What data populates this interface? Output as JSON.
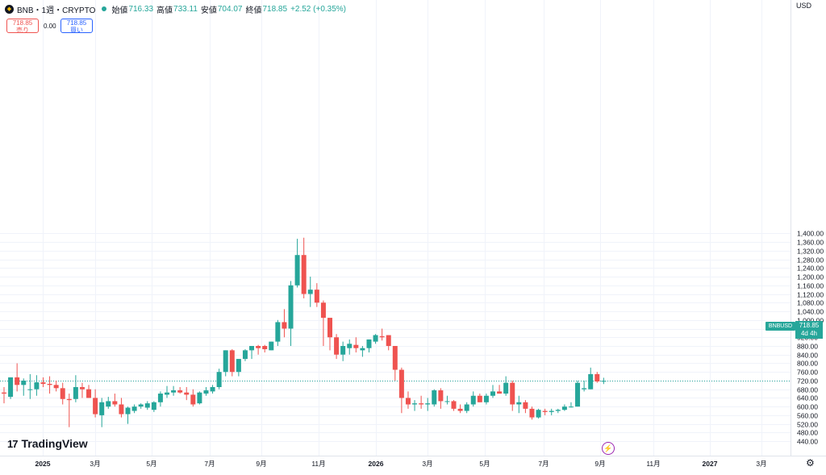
{
  "header": {
    "symbol_line": "BNB・1週・CRYPTO",
    "open_label": "始値",
    "open": "716.33",
    "high_label": "高値",
    "high": "733.11",
    "low_label": "安値",
    "low": "704.07",
    "close_label": "終値",
    "close": "718.85",
    "change": "+2.52 (+0.35%)"
  },
  "trade": {
    "sell_price": "718.85",
    "sell_label": "売り",
    "spread": "0.00",
    "buy_price": "718.85",
    "buy_label": "買い"
  },
  "currency": "USD",
  "last_price_tag": {
    "symbol": "BNBUSD",
    "price": "718.85",
    "countdown": "4d 4h"
  },
  "brand": "TradingView",
  "colors": {
    "up": "#26a69a",
    "down": "#ef5350",
    "buy": "#2962ff",
    "flag": "#9c27b0"
  },
  "icons": {
    "symbol": "bnb-coin-icon",
    "status": "market-status-dot-icon",
    "settings": "gear-icon",
    "event": "lightning-icon",
    "logo": "tradingview-logo-icon"
  },
  "chart_data": {
    "type": "candlestick",
    "interval": "1週",
    "ylim": [
      420,
      1420
    ],
    "y_ticks": [
      "440.00",
      "480.00",
      "520.00",
      "560.00",
      "600.00",
      "640.00",
      "680.00",
      "720.00",
      "760.00",
      "800.00",
      "840.00",
      "880.00",
      "920.00",
      "960.00",
      "1,000.00",
      "1,040.00",
      "1,080.00",
      "1,120.00",
      "1,160.00",
      "1,200.00",
      "1,240.00",
      "1,280.00",
      "1,320.00",
      "1,360.00",
      "1,400.00"
    ],
    "x_ticks": [
      "2025",
      "3月",
      "5月",
      "7月",
      "9月",
      "11月",
      "2026",
      "3月",
      "5月",
      "7月",
      "9月",
      "11月",
      "2027",
      "3月"
    ],
    "last_price": 718.85,
    "candles": [
      {
        "o": 665,
        "h": 690,
        "l": 615,
        "c": 660
      },
      {
        "o": 645,
        "h": 735,
        "l": 635,
        "c": 735
      },
      {
        "o": 735,
        "h": 800,
        "l": 670,
        "c": 700
      },
      {
        "o": 700,
        "h": 730,
        "l": 650,
        "c": 720
      },
      {
        "o": 680,
        "h": 750,
        "l": 635,
        "c": 680
      },
      {
        "o": 680,
        "h": 745,
        "l": 650,
        "c": 712
      },
      {
        "o": 712,
        "h": 735,
        "l": 690,
        "c": 705
      },
      {
        "o": 705,
        "h": 740,
        "l": 660,
        "c": 700
      },
      {
        "o": 700,
        "h": 720,
        "l": 670,
        "c": 685
      },
      {
        "o": 685,
        "h": 710,
        "l": 610,
        "c": 635
      },
      {
        "o": 635,
        "h": 660,
        "l": 505,
        "c": 630
      },
      {
        "o": 635,
        "h": 745,
        "l": 620,
        "c": 690
      },
      {
        "o": 690,
        "h": 710,
        "l": 640,
        "c": 680
      },
      {
        "o": 680,
        "h": 700,
        "l": 640,
        "c": 640
      },
      {
        "o": 640,
        "h": 680,
        "l": 550,
        "c": 565
      },
      {
        "o": 560,
        "h": 640,
        "l": 505,
        "c": 620
      },
      {
        "o": 600,
        "h": 645,
        "l": 590,
        "c": 625
      },
      {
        "o": 625,
        "h": 660,
        "l": 600,
        "c": 610
      },
      {
        "o": 610,
        "h": 640,
        "l": 550,
        "c": 565
      },
      {
        "o": 565,
        "h": 600,
        "l": 520,
        "c": 595
      },
      {
        "o": 580,
        "h": 610,
        "l": 570,
        "c": 600
      },
      {
        "o": 600,
        "h": 615,
        "l": 590,
        "c": 610
      },
      {
        "o": 595,
        "h": 625,
        "l": 585,
        "c": 615
      },
      {
        "o": 585,
        "h": 625,
        "l": 575,
        "c": 620
      },
      {
        "o": 620,
        "h": 670,
        "l": 600,
        "c": 660
      },
      {
        "o": 655,
        "h": 695,
        "l": 640,
        "c": 665
      },
      {
        "o": 665,
        "h": 695,
        "l": 650,
        "c": 675
      },
      {
        "o": 675,
        "h": 690,
        "l": 660,
        "c": 665
      },
      {
        "o": 665,
        "h": 690,
        "l": 630,
        "c": 655
      },
      {
        "o": 655,
        "h": 680,
        "l": 600,
        "c": 610
      },
      {
        "o": 615,
        "h": 670,
        "l": 610,
        "c": 665
      },
      {
        "o": 660,
        "h": 690,
        "l": 650,
        "c": 675
      },
      {
        "o": 670,
        "h": 700,
        "l": 660,
        "c": 690
      },
      {
        "o": 690,
        "h": 775,
        "l": 680,
        "c": 760
      },
      {
        "o": 760,
        "h": 860,
        "l": 740,
        "c": 860
      },
      {
        "o": 860,
        "h": 865,
        "l": 740,
        "c": 760
      },
      {
        "o": 760,
        "h": 820,
        "l": 740,
        "c": 820
      },
      {
        "o": 820,
        "h": 865,
        "l": 810,
        "c": 860
      },
      {
        "o": 860,
        "h": 880,
        "l": 820,
        "c": 880
      },
      {
        "o": 880,
        "h": 885,
        "l": 840,
        "c": 870
      },
      {
        "o": 880,
        "h": 885,
        "l": 850,
        "c": 865
      },
      {
        "o": 860,
        "h": 900,
        "l": 860,
        "c": 900
      },
      {
        "o": 900,
        "h": 1000,
        "l": 880,
        "c": 990
      },
      {
        "o": 990,
        "h": 1050,
        "l": 920,
        "c": 960
      },
      {
        "o": 960,
        "h": 1180,
        "l": 880,
        "c": 1160
      },
      {
        "o": 1160,
        "h": 1375,
        "l": 1150,
        "c": 1300
      },
      {
        "o": 1300,
        "h": 1380,
        "l": 1100,
        "c": 1120
      },
      {
        "o": 1120,
        "h": 1200,
        "l": 1060,
        "c": 1140
      },
      {
        "o": 1140,
        "h": 1170,
        "l": 1060,
        "c": 1080
      },
      {
        "o": 1080,
        "h": 1090,
        "l": 880,
        "c": 1010
      },
      {
        "o": 1010,
        "h": 1010,
        "l": 860,
        "c": 920
      },
      {
        "o": 920,
        "h": 935,
        "l": 820,
        "c": 840
      },
      {
        "o": 840,
        "h": 900,
        "l": 810,
        "c": 880
      },
      {
        "o": 870,
        "h": 910,
        "l": 840,
        "c": 890
      },
      {
        "o": 885,
        "h": 920,
        "l": 850,
        "c": 870
      },
      {
        "o": 860,
        "h": 880,
        "l": 830,
        "c": 870
      },
      {
        "o": 870,
        "h": 910,
        "l": 850,
        "c": 910
      },
      {
        "o": 900,
        "h": 935,
        "l": 890,
        "c": 930
      },
      {
        "o": 925,
        "h": 960,
        "l": 905,
        "c": 920
      },
      {
        "o": 930,
        "h": 930,
        "l": 860,
        "c": 880
      },
      {
        "o": 880,
        "h": 880,
        "l": 720,
        "c": 770
      },
      {
        "o": 770,
        "h": 780,
        "l": 570,
        "c": 640
      },
      {
        "o": 640,
        "h": 670,
        "l": 590,
        "c": 610
      },
      {
        "o": 610,
        "h": 630,
        "l": 580,
        "c": 615
      },
      {
        "o": 615,
        "h": 650,
        "l": 590,
        "c": 610
      },
      {
        "o": 610,
        "h": 640,
        "l": 580,
        "c": 615
      },
      {
        "o": 610,
        "h": 680,
        "l": 600,
        "c": 675
      },
      {
        "o": 675,
        "h": 685,
        "l": 590,
        "c": 625
      },
      {
        "o": 625,
        "h": 650,
        "l": 610,
        "c": 625
      },
      {
        "o": 625,
        "h": 630,
        "l": 580,
        "c": 590
      },
      {
        "o": 590,
        "h": 610,
        "l": 570,
        "c": 580
      },
      {
        "o": 580,
        "h": 620,
        "l": 570,
        "c": 610
      },
      {
        "o": 610,
        "h": 670,
        "l": 600,
        "c": 650
      },
      {
        "o": 650,
        "h": 660,
        "l": 620,
        "c": 620
      },
      {
        "o": 620,
        "h": 660,
        "l": 610,
        "c": 650
      },
      {
        "o": 650,
        "h": 700,
        "l": 640,
        "c": 670
      },
      {
        "o": 670,
        "h": 700,
        "l": 660,
        "c": 660
      },
      {
        "o": 660,
        "h": 740,
        "l": 650,
        "c": 710
      },
      {
        "o": 710,
        "h": 720,
        "l": 580,
        "c": 610
      },
      {
        "o": 610,
        "h": 650,
        "l": 570,
        "c": 620
      },
      {
        "o": 620,
        "h": 630,
        "l": 570,
        "c": 590
      },
      {
        "o": 590,
        "h": 600,
        "l": 540,
        "c": 550
      },
      {
        "o": 550,
        "h": 590,
        "l": 545,
        "c": 585
      },
      {
        "o": 580,
        "h": 590,
        "l": 560,
        "c": 575
      },
      {
        "o": 575,
        "h": 590,
        "l": 560,
        "c": 580
      },
      {
        "o": 580,
        "h": 590,
        "l": 570,
        "c": 585
      },
      {
        "o": 585,
        "h": 610,
        "l": 580,
        "c": 600
      },
      {
        "o": 600,
        "h": 620,
        "l": 595,
        "c": 600
      },
      {
        "o": 600,
        "h": 720,
        "l": 600,
        "c": 710
      },
      {
        "o": 680,
        "h": 720,
        "l": 670,
        "c": 685
      },
      {
        "o": 680,
        "h": 780,
        "l": 680,
        "c": 750
      },
      {
        "o": 750,
        "h": 760,
        "l": 710,
        "c": 716
      },
      {
        "o": 716.33,
        "h": 733.11,
        "l": 704.07,
        "c": 718.85
      }
    ]
  }
}
